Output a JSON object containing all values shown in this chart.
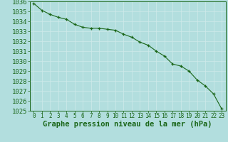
{
  "x": [
    0,
    1,
    2,
    3,
    4,
    5,
    6,
    7,
    8,
    9,
    10,
    11,
    12,
    13,
    14,
    15,
    16,
    17,
    18,
    19,
    20,
    21,
    22,
    23
  ],
  "y": [
    1035.8,
    1035.1,
    1034.7,
    1034.4,
    1034.2,
    1033.7,
    1033.4,
    1033.3,
    1033.3,
    1033.2,
    1033.1,
    1032.7,
    1032.4,
    1031.9,
    1031.6,
    1031.0,
    1030.5,
    1029.7,
    1029.5,
    1029.0,
    1028.1,
    1027.5,
    1026.7,
    1025.2
  ],
  "ylim": [
    1025,
    1036
  ],
  "xlim": [
    -0.5,
    23.5
  ],
  "yticks": [
    1025,
    1026,
    1027,
    1028,
    1029,
    1030,
    1031,
    1032,
    1033,
    1034,
    1035,
    1036
  ],
  "xticks": [
    0,
    1,
    2,
    3,
    4,
    5,
    6,
    7,
    8,
    9,
    10,
    11,
    12,
    13,
    14,
    15,
    16,
    17,
    18,
    19,
    20,
    21,
    22,
    23
  ],
  "xlabel": "Graphe pression niveau de la mer (hPa)",
  "line_color": "#1a6618",
  "marker": "+",
  "bg_color": "#b2dede",
  "grid_color": "#d0eaea",
  "tick_label_color": "#1a6618",
  "xlabel_color": "#1a6618",
  "xlabel_fontsize": 7.5,
  "ytick_fontsize": 6.5,
  "xtick_fontsize": 5.5
}
